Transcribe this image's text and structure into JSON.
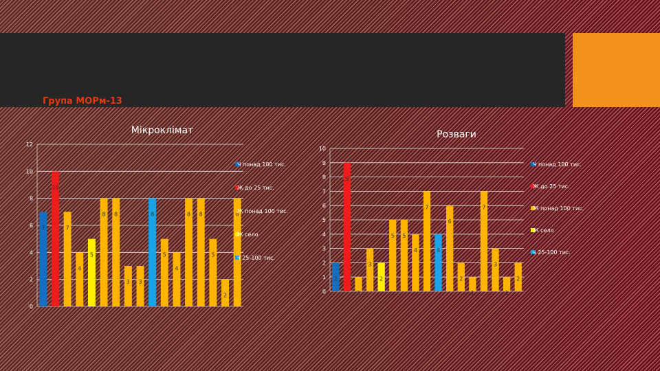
{
  "slide": {
    "subtitle": "Група МОРм-13",
    "colors": {
      "title_bar": "#262626",
      "accent": "#f0921d",
      "subtitle": "#e23a12"
    }
  },
  "chart_data": [
    {
      "type": "bar",
      "title": "Мікроклімат",
      "ylim": [
        0,
        12
      ],
      "yticks": [
        0,
        2,
        4,
        6,
        8,
        10,
        12
      ],
      "grid": true,
      "legend_position": "right",
      "legend": [
        {
          "label": "Ч понад 100 тис.",
          "color": "#1170c4"
        },
        {
          "label": "Ж до 25 тис.",
          "color": "#ee1c1c"
        },
        {
          "label": "Ж понад 100 тис.",
          "color": "#ffb400"
        },
        {
          "label": "Ж село",
          "color": "#ffee00"
        },
        {
          "label": "ч 25-100 тис.",
          "color": "#1aa3e8"
        }
      ],
      "values": [
        7,
        10,
        7,
        4,
        5,
        8,
        8,
        3,
        3,
        8,
        5,
        4,
        8,
        8,
        5,
        2,
        8
      ],
      "bar_series": [
        0,
        1,
        2,
        2,
        3,
        2,
        2,
        2,
        2,
        4,
        2,
        2,
        2,
        2,
        2,
        2,
        2
      ]
    },
    {
      "type": "bar",
      "title": "Розваги",
      "ylim": [
        0,
        10
      ],
      "yticks": [
        0,
        1,
        2,
        3,
        4,
        5,
        6,
        7,
        8,
        9,
        10
      ],
      "grid": true,
      "legend_position": "right",
      "legend": [
        {
          "label": "Ч понад 100 тис.",
          "color": "#1170c4"
        },
        {
          "label": "Ж до 25 тис.",
          "color": "#ee1c1c"
        },
        {
          "label": "Ж понад 100 тис.",
          "color": "#ffb400"
        },
        {
          "label": "Ж село",
          "color": "#ffee00"
        },
        {
          "label": "ч 25-100 тис.",
          "color": "#1aa3e8"
        }
      ],
      "values": [
        2,
        9,
        1,
        3,
        2,
        5,
        5,
        4,
        7,
        4,
        6,
        2,
        1,
        7,
        3,
        1,
        2
      ],
      "bar_series": [
        0,
        1,
        2,
        2,
        3,
        2,
        2,
        2,
        2,
        4,
        2,
        2,
        2,
        2,
        2,
        2,
        2
      ]
    }
  ]
}
